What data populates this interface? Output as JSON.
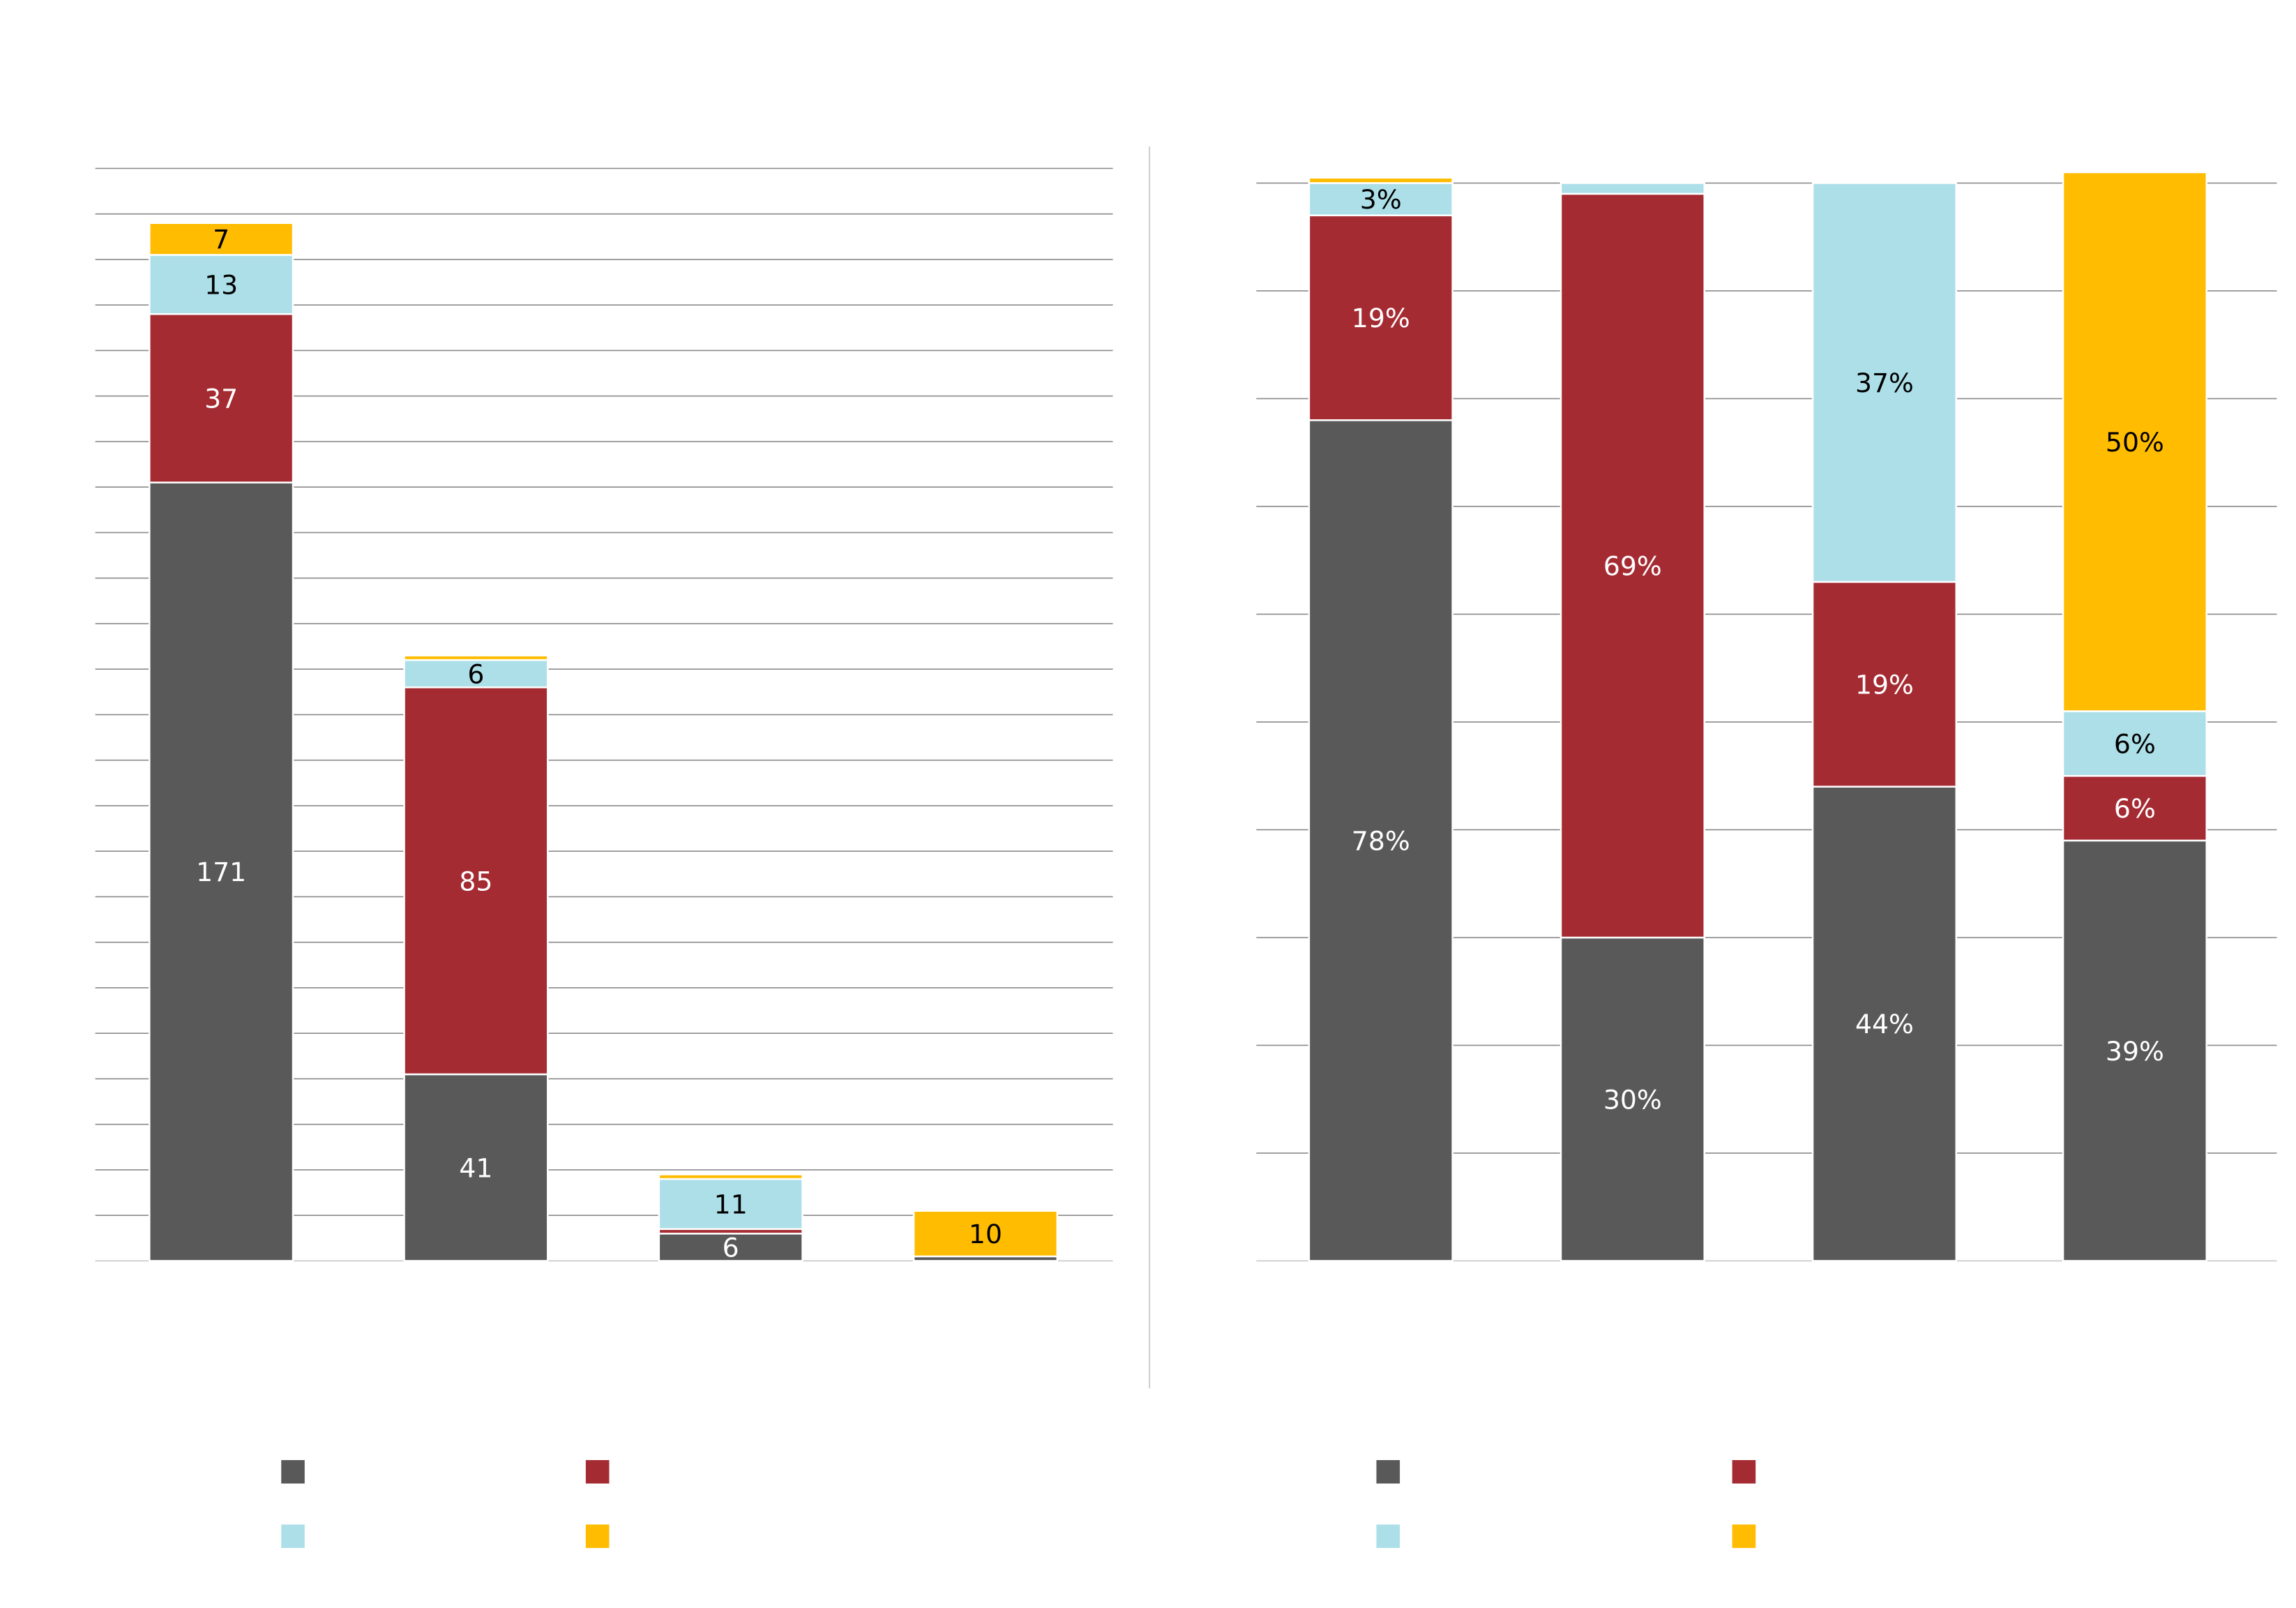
{
  "colors": {
    "s1": "#595959",
    "s2": "#A52B33",
    "s3": "#ADDFE8",
    "s4": "#FFBC00"
  },
  "chart_data": [
    {
      "type": "bar",
      "stacked": true,
      "title": "",
      "xlabel": "",
      "ylabel": "",
      "categories": [
        "",
        "",
        "",
        ""
      ],
      "ylim": [
        0,
        240
      ],
      "grid": true,
      "grid_step": 10,
      "series": [
        {
          "name": "",
          "values": [
            171,
            41,
            6,
            1
          ]
        },
        {
          "name": "",
          "values": [
            37,
            85,
            1,
            0
          ]
        },
        {
          "name": "",
          "values": [
            13,
            6,
            11,
            0
          ]
        },
        {
          "name": "",
          "values": [
            7,
            1,
            1,
            10
          ]
        }
      ],
      "labels": [
        [
          "171",
          "41",
          "6",
          ""
        ],
        [
          "37",
          "85",
          "",
          ""
        ],
        [
          "13",
          "6",
          "11",
          ""
        ],
        [
          "7",
          "",
          "",
          "10"
        ]
      ],
      "legend": "bottom"
    },
    {
      "type": "bar",
      "stacked": true,
      "percent": true,
      "title": "",
      "xlabel": "",
      "ylabel": "",
      "categories": [
        "",
        "",
        "",
        ""
      ],
      "ylim": [
        0,
        100
      ],
      "grid": true,
      "grid_step": 10,
      "series": [
        {
          "name": "",
          "values": [
            78,
            30,
            44,
            39
          ]
        },
        {
          "name": "",
          "values": [
            19,
            69,
            19,
            6
          ]
        },
        {
          "name": "",
          "values": [
            3,
            1,
            37,
            6
          ]
        },
        {
          "name": "",
          "values": [
            0.5,
            0,
            0,
            50
          ]
        }
      ],
      "labels": [
        [
          "78%",
          "30%",
          "44%",
          "39%"
        ],
        [
          "19%",
          "69%",
          "19%",
          "6%"
        ],
        [
          "3%",
          "",
          "37%",
          "6%"
        ],
        [
          "",
          "",
          "",
          "50%"
        ]
      ],
      "legend": "bottom"
    }
  ]
}
